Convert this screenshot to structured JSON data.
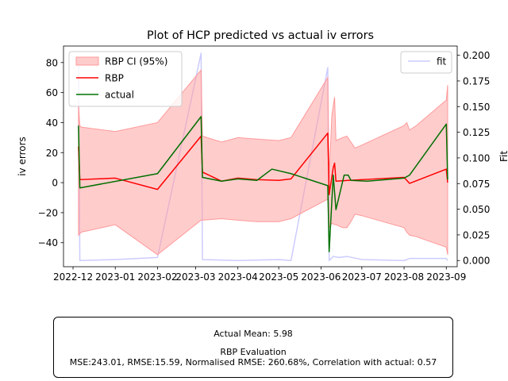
{
  "chart_data": {
    "type": "line",
    "title": "Plot of HCP predicted vs actual iv errors",
    "ylabel": "iv errors",
    "y2label": "Fit",
    "xlim": [
      "2022-11-24",
      "2023-09-09"
    ],
    "ylim": [
      -56,
      91
    ],
    "y2lim": [
      -0.006,
      0.209
    ],
    "x_ticks": [
      "2022-12",
      "2023-01",
      "2023-02",
      "2023-03",
      "2023-04",
      "2023-05",
      "2023-06",
      "2023-07",
      "2023-08",
      "2023-09"
    ],
    "y_ticks": [
      -40,
      -20,
      0,
      20,
      40,
      60,
      80
    ],
    "y2_ticks": [
      "0.000",
      "0.025",
      "0.050",
      "0.075",
      "0.100",
      "0.125",
      "0.150",
      "0.175",
      "0.200"
    ],
    "grid": false,
    "legend_left": {
      "placement": "top-left",
      "entries": [
        {
          "label": "RBP CI (95%)",
          "kind": "band",
          "color": "#ff9999"
        },
        {
          "label": "RBP",
          "kind": "line",
          "color": "#ff0000"
        },
        {
          "label": "actual",
          "kind": "line",
          "color": "#007000"
        }
      ]
    },
    "legend_right": {
      "placement": "top-right",
      "entries": [
        {
          "label": "fit",
          "kind": "line",
          "color": "#ccccff"
        }
      ]
    },
    "ci_band": {
      "name": "RBP CI (95%)",
      "color": "#ff9999",
      "x": [
        "2022-12-05",
        "2022-12-06",
        "2022-12-07",
        "2023-01-01",
        "2023-02-01",
        "2023-03-05",
        "2023-03-06",
        "2023-03-20",
        "2023-04-01",
        "2023-04-15",
        "2023-05-01",
        "2023-05-10",
        "2023-06-06",
        "2023-06-07",
        "2023-06-09",
        "2023-06-11",
        "2023-06-12",
        "2023-06-17",
        "2023-06-20",
        "2023-06-23",
        "2023-06-26",
        "2023-07-01",
        "2023-08-01",
        "2023-08-03",
        "2023-08-05",
        "2023-08-10",
        "2023-09-01",
        "2023-09-02"
      ],
      "upper": [
        52,
        38,
        37,
        34,
        40,
        75,
        31,
        27,
        30,
        29,
        28,
        30,
        70,
        3,
        45,
        57,
        28,
        30,
        31,
        27,
        23,
        25,
        38,
        40,
        35,
        38,
        55,
        65
      ],
      "lower": [
        -35,
        -34,
        -33,
        -28,
        -48,
        -25,
        -25,
        -24,
        -25,
        -26,
        -26,
        -24,
        -11,
        -30,
        -27,
        -28,
        -28,
        -30,
        -30,
        -26,
        -21,
        -22,
        -30,
        -33,
        -35,
        -36,
        -43,
        -48
      ]
    },
    "series": [
      {
        "name": "RBP",
        "color": "#ff0000",
        "axis": "left",
        "x": [
          "2022-12-05",
          "2022-12-06",
          "2023-01-01",
          "2023-02-01",
          "2023-03-05",
          "2023-03-06",
          "2023-03-20",
          "2023-04-01",
          "2023-04-15",
          "2023-05-01",
          "2023-05-10",
          "2023-06-06",
          "2023-06-07",
          "2023-06-10",
          "2023-06-11",
          "2023-06-12",
          "2023-06-21",
          "2023-07-01",
          "2023-08-01",
          "2023-08-05",
          "2023-09-01",
          "2023-09-02"
        ],
        "values": [
          24,
          2,
          3,
          -4.5,
          31,
          7,
          1,
          3,
          2,
          1.5,
          2.5,
          33,
          -8,
          10,
          13,
          1,
          1.5,
          2,
          3.5,
          -0.5,
          9,
          0
        ]
      },
      {
        "name": "actual",
        "color": "#007000",
        "axis": "left",
        "x": [
          "2022-12-05",
          "2022-12-06",
          "2023-02-01",
          "2023-03-05",
          "2023-03-06",
          "2023-03-20",
          "2023-04-01",
          "2023-04-15",
          "2023-04-26",
          "2023-05-10",
          "2023-06-06",
          "2023-06-07",
          "2023-06-10",
          "2023-06-12",
          "2023-06-18",
          "2023-06-21",
          "2023-06-23",
          "2023-07-05",
          "2023-08-01",
          "2023-08-05",
          "2023-09-01",
          "2023-09-02"
        ],
        "values": [
          38,
          -3.5,
          6,
          44,
          3.5,
          1,
          2.5,
          1.5,
          9,
          6,
          -2,
          -46,
          5,
          -18,
          5,
          5,
          1.5,
          1,
          3,
          5,
          39,
          2
        ]
      },
      {
        "name": "fit",
        "color": "#ccccff",
        "axis": "right",
        "x": [
          "2022-12-05",
          "2022-12-06",
          "2023-01-01",
          "2023-02-01",
          "2023-03-05",
          "2023-03-06",
          "2023-04-01",
          "2023-05-01",
          "2023-05-10",
          "2023-06-06",
          "2023-06-07",
          "2023-06-10",
          "2023-06-14",
          "2023-06-20",
          "2023-07-01",
          "2023-08-01",
          "2023-08-05",
          "2023-09-01",
          "2023-09-02"
        ],
        "values": [
          0.195,
          0.0,
          0.001,
          0.003,
          0.202,
          0.001,
          0.0,
          0.001,
          0.0,
          0.188,
          0.0,
          0.004,
          0.003,
          0.004,
          0.001,
          0.0,
          0.002,
          0.002,
          0.0
        ]
      }
    ]
  },
  "info_box": {
    "actual_mean": "Actual Mean: 5.98",
    "eval_title": "RBP Evaluation",
    "eval_metrics": "MSE:243.01, RMSE:15.59, Normalised RMSE: 260.68%, Correlation with actual: 0.57"
  }
}
